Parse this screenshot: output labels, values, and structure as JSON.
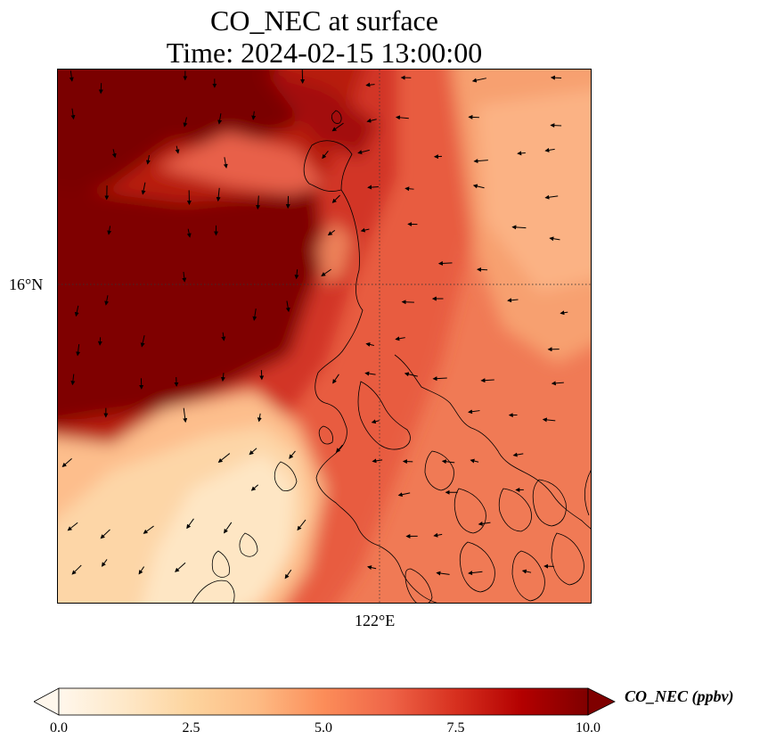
{
  "title": {
    "line1": "CO_NEC at surface",
    "line2": "Time: 2024-02-15 13:00:00"
  },
  "map": {
    "gridlines": {
      "latitude": "16°N",
      "longitude": "122°E",
      "style": "dotted"
    },
    "field_variable": "CO_NEC",
    "colormap": "OrRd",
    "overlays": [
      "wind-vectors",
      "coastlines"
    ]
  },
  "colorbar": {
    "label": "CO_NEC (ppbv)",
    "min": 0.0,
    "max": 10.0,
    "extend": "both",
    "ticks": [
      "0.0",
      "2.5",
      "5.0",
      "7.5",
      "10.0"
    ],
    "colors": [
      "#fff7ec",
      "#fee8c8",
      "#fdd49e",
      "#fdbb84",
      "#fc8d59",
      "#ef6548",
      "#d7301f",
      "#b30000",
      "#7f0000"
    ]
  }
}
